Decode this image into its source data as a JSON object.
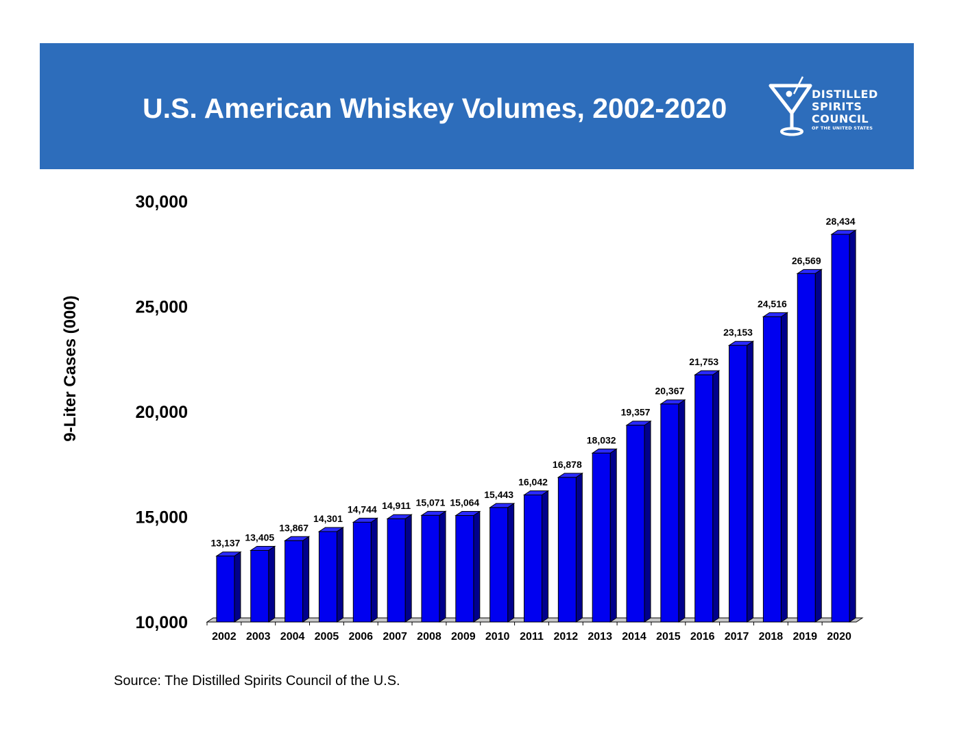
{
  "header": {
    "title": "U.S. American Whiskey Volumes, 2002-2020",
    "logo": {
      "icon": "martini-glass-icon",
      "line1": "DISTILLED",
      "line2": "SPIRITS",
      "line3": "COUNCIL",
      "line4": "OF THE UNITED STATES"
    }
  },
  "colors": {
    "banner": "#2d6dbb",
    "bar_front": "#0000f0",
    "bar_side": "#00008c",
    "bar_top": "#2a2aff",
    "floor": "#c8c8c8"
  },
  "source": "Source:  The Distilled Spirits Council of the U.S.",
  "chart_data": {
    "type": "bar",
    "title": "U.S. American Whiskey Volumes, 2002-2020",
    "xlabel": "",
    "ylabel": "9-Liter Cases (000)",
    "ylim": [
      10000,
      30000
    ],
    "yticks": [
      "10,000",
      "15,000",
      "20,000",
      "25,000",
      "30,000"
    ],
    "ytick_values": [
      10000,
      15000,
      20000,
      25000,
      30000
    ],
    "grid": false,
    "categories": [
      "2002",
      "2003",
      "2004",
      "2005",
      "2006",
      "2007",
      "2008",
      "2009",
      "2010",
      "2011",
      "2012",
      "2013",
      "2014",
      "2015",
      "2016",
      "2017",
      "2018",
      "2019",
      "2020"
    ],
    "values": [
      13137,
      13405,
      13867,
      14301,
      14744,
      14911,
      15071,
      15064,
      15443,
      16042,
      16878,
      18032,
      19357,
      20367,
      21753,
      23153,
      24516,
      26569,
      28434
    ],
    "value_labels": [
      "13,137",
      "13,405",
      "13,867",
      "14,301",
      "14,744",
      "14,911",
      "15,071",
      "15,064",
      "15,443",
      "16,042",
      "16,878",
      "18,032",
      "19,357",
      "20,367",
      "21,753",
      "23,153",
      "24,516",
      "26,569",
      "28,434"
    ]
  }
}
